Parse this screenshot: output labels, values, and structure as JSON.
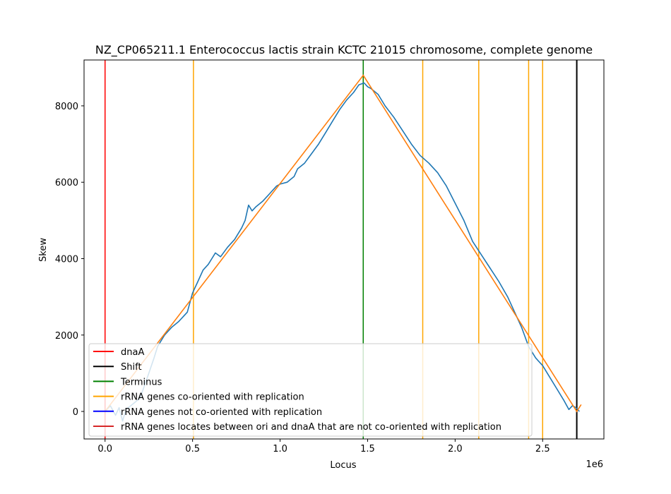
{
  "chart_data": {
    "type": "line",
    "title": "NZ_CP065211.1 Enterococcus lactis strain KCTC 21015 chromosome, complete genome",
    "xlabel": "Locus",
    "ylabel": "Skew",
    "x_offset_label": "1e6",
    "xlim": [
      -120000,
      2850000
    ],
    "ylim": [
      -720,
      9200
    ],
    "x_ticks": [
      0,
      500000,
      1000000,
      1500000,
      2000000,
      2500000
    ],
    "x_tick_labels": [
      "0.0",
      "0.5",
      "1.0",
      "1.5",
      "2.0",
      "2.5"
    ],
    "y_ticks": [
      0,
      2000,
      4000,
      6000,
      8000
    ],
    "y_tick_labels": [
      "0",
      "2000",
      "4000",
      "6000",
      "8000"
    ],
    "grid": false,
    "legend_position": "lower-left",
    "colors": {
      "skew": "#1f77b4",
      "fit": "#ff7f0e",
      "dnaA": "#ff0000",
      "shift": "#000000",
      "terminus": "#008000",
      "rrna_co": "#ffa500",
      "rrna_not_co": "#0000ff",
      "rrna_between": "#d62728"
    },
    "series": [
      {
        "name": "skew",
        "x": [
          0,
          30000,
          60000,
          80000,
          100000,
          120000,
          160000,
          200000,
          250000,
          280000,
          300000,
          340000,
          380000,
          420000,
          450000,
          470000,
          500000,
          530000,
          560000,
          590000,
          610000,
          630000,
          660000,
          700000,
          740000,
          780000,
          800000,
          820000,
          840000,
          860000,
          900000,
          940000,
          980000,
          1000000,
          1040000,
          1080000,
          1100000,
          1140000,
          1180000,
          1220000,
          1260000,
          1300000,
          1340000,
          1380000,
          1420000,
          1450000,
          1480000,
          1500000,
          1520000,
          1560000,
          1600000,
          1650000,
          1700000,
          1750000,
          1800000,
          1850000,
          1900000,
          1950000,
          2000000,
          2050000,
          2100000,
          2150000,
          2200000,
          2250000,
          2300000,
          2350000,
          2380000,
          2420000,
          2460000,
          2500000,
          2540000,
          2580000,
          2620000,
          2650000,
          2670000,
          2690000,
          2700000,
          2710000
        ],
        "y": [
          0,
          150,
          -100,
          100,
          -250,
          50,
          200,
          350,
          1000,
          1400,
          1700,
          2000,
          2200,
          2350,
          2500,
          2600,
          3100,
          3400,
          3700,
          3850,
          4000,
          4150,
          4050,
          4300,
          4500,
          4800,
          5000,
          5400,
          5250,
          5350,
          5500,
          5700,
          5900,
          5950,
          6000,
          6150,
          6350,
          6500,
          6750,
          7000,
          7300,
          7600,
          7900,
          8150,
          8350,
          8550,
          8600,
          8500,
          8450,
          8300,
          8000,
          7700,
          7350,
          7000,
          6700,
          6500,
          6250,
          5900,
          5450,
          5000,
          4450,
          4100,
          3750,
          3400,
          3000,
          2500,
          2200,
          1700,
          1400,
          1200,
          900,
          600,
          300,
          50,
          150,
          100,
          50,
          0
        ]
      },
      {
        "name": "fit",
        "x": [
          0,
          1475000,
          2695000,
          2720000
        ],
        "y": [
          0,
          8800,
          0,
          180
        ]
      }
    ],
    "vlines": [
      {
        "name": "dnaA",
        "x": 0
      },
      {
        "name": "Shift",
        "x": 2695000
      },
      {
        "name": "Terminus",
        "x": 1475000
      },
      {
        "name": "rRNA genes co-oriented with replication",
        "x": 505000
      },
      {
        "name": "rRNA genes co-oriented with replication",
        "x": 1815000
      },
      {
        "name": "rRNA genes co-oriented with replication",
        "x": 2135000
      },
      {
        "name": "rRNA genes co-oriented with replication",
        "x": 2420000
      },
      {
        "name": "rRNA genes co-oriented with replication",
        "x": 2500000
      }
    ],
    "legend": [
      {
        "label": "dnaA",
        "color_key": "dnaA"
      },
      {
        "label": "Shift",
        "color_key": "shift"
      },
      {
        "label": "Terminus",
        "color_key": "terminus"
      },
      {
        "label": "rRNA genes co-oriented with replication",
        "color_key": "rrna_co"
      },
      {
        "label": "rRNA genes not co-oriented with replication",
        "color_key": "rrna_not_co"
      },
      {
        "label": "rRNA genes locates between ori and dnaA that are not co-oriented with replication",
        "color_key": "rrna_between"
      }
    ]
  }
}
